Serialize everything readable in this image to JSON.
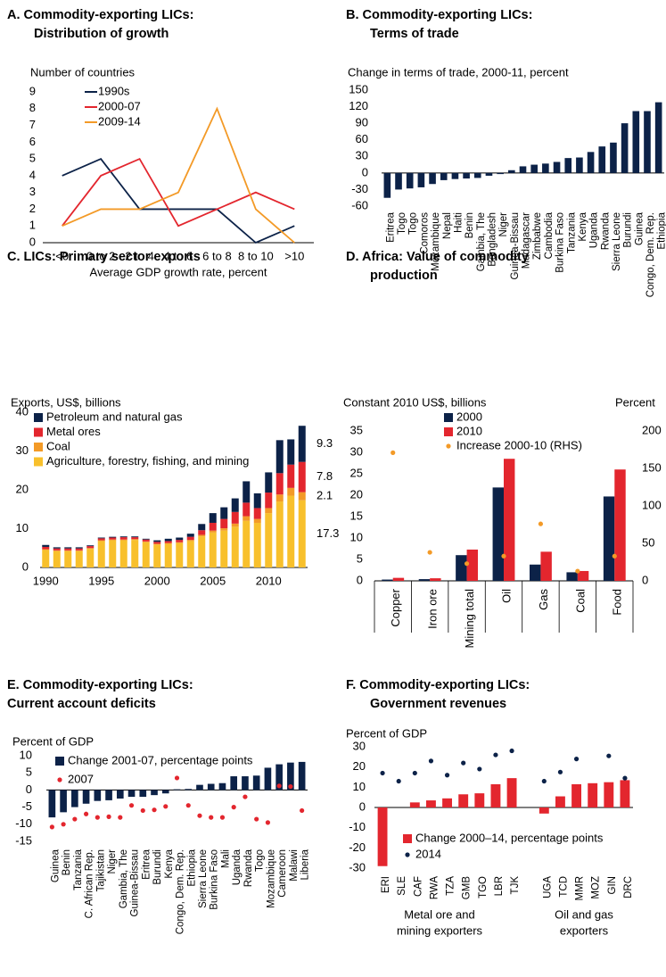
{
  "chart_data": [
    {
      "type": "line",
      "title": [
        "A. Commodity-exporting LICs:",
        "Distribution of growth"
      ],
      "ylabel": "Number of countries",
      "xlabel": "Average GDP growth rate, percent",
      "categories": [
        "<0",
        "0 to 2",
        "2 to 4",
        "4 to 6",
        "6 to 8",
        "8 to 10",
        ">10"
      ],
      "series": [
        {
          "name": "1990s",
          "color": "#0c2248",
          "values": [
            4,
            5,
            2,
            2,
            2,
            0,
            1
          ]
        },
        {
          "name": "2000-07",
          "color": "#e3262e",
          "values": [
            1,
            4,
            5,
            1,
            2,
            3,
            2
          ]
        },
        {
          "name": "2009-14",
          "color": "#f39a27",
          "values": [
            1,
            2,
            2,
            3,
            8,
            2,
            0
          ]
        }
      ],
      "ylim": [
        0,
        9
      ],
      "yticks": [
        0,
        1,
        2,
        3,
        4,
        5,
        6,
        7,
        8,
        9
      ]
    },
    {
      "type": "bar",
      "title": [
        "B. Commodity-exporting LICs:",
        "Terms of trade"
      ],
      "ylabel": "Change in terms of trade, 2000-11, percent",
      "categories": [
        "Eritrea",
        "Togo",
        "Togo",
        "Comoros",
        "Mozambique",
        "Nepal",
        "Haiti",
        "Benin",
        "Gambia, The",
        "Bangladesh",
        "Niger",
        "Guinea-Bissau",
        "Madagascar",
        "Zimbabwe",
        "Cambodia",
        "Burkina Faso",
        "Tanzania",
        "Kenya",
        "Uganda",
        "Rwanda",
        "Sierra Leone",
        "Burundi",
        "Guinea",
        "Congo, Dem. Rep.",
        "Ethiopia"
      ],
      "series": [
        {
          "color": "#0c2248",
          "values": [
            -45,
            -30,
            -28,
            -26,
            -20,
            -13,
            -11,
            -10,
            -9,
            -5,
            -2,
            5,
            12,
            15,
            17,
            20,
            27,
            28,
            38,
            48,
            55,
            90,
            112,
            112,
            128
          ]
        }
      ],
      "ylim": [
        -60,
        150
      ],
      "yticks": [
        -60,
        -30,
        0,
        30,
        60,
        90,
        120,
        150
      ]
    },
    {
      "type": "stacked_bar",
      "title": [
        "C. LICs: Primary sector exports"
      ],
      "ylabel": "Exports, US$, billions",
      "categories": [
        "1990",
        null,
        null,
        null,
        null,
        "1995",
        null,
        null,
        null,
        null,
        "2000",
        null,
        null,
        null,
        null,
        "2005",
        null,
        null,
        null,
        null,
        "2010",
        null,
        null,
        null
      ],
      "series": [
        {
          "name": "Petroleum and natural gas",
          "color": "#0c2248",
          "values": [
            0.5,
            0.3,
            0.3,
            0.3,
            0.2,
            0.2,
            0.2,
            0.2,
            0.2,
            0.2,
            0.4,
            0.6,
            0.6,
            0.8,
            1.6,
            2.5,
            3.0,
            3.5,
            5.5,
            3.8,
            5.2,
            8.5,
            6.5,
            9.3
          ]
        },
        {
          "name": "Metal ores",
          "color": "#e3262e",
          "values": [
            0.6,
            0.5,
            0.5,
            0.5,
            0.5,
            0.5,
            0.5,
            0.6,
            0.5,
            0.5,
            0.5,
            0.5,
            0.6,
            0.8,
            1.2,
            2.0,
            2.4,
            3.0,
            3.5,
            2.8,
            4.0,
            5.5,
            6.0,
            7.8
          ]
        },
        {
          "name": "Coal",
          "color": "#f39a27",
          "values": [
            0.2,
            0.2,
            0.2,
            0.2,
            0.2,
            0.2,
            0.2,
            0.2,
            0.2,
            0.2,
            0.2,
            0.2,
            0.2,
            0.3,
            0.4,
            0.5,
            0.6,
            0.8,
            1.2,
            1.0,
            1.3,
            1.8,
            2.0,
            2.1
          ]
        },
        {
          "name": "Agriculture, forestry, fishing, and mining",
          "color": "#f8c02c",
          "values": [
            4.5,
            4.2,
            4.2,
            4.2,
            4.8,
            6.8,
            7.0,
            7.0,
            7.1,
            6.5,
            5.9,
            6.1,
            6.3,
            6.8,
            8.0,
            9.0,
            9.5,
            10.5,
            12.0,
            11.5,
            14.0,
            17.0,
            18.5,
            17.3
          ]
        }
      ],
      "ylim": [
        0,
        40
      ],
      "yticks": [
        0,
        10,
        20,
        30,
        40
      ]
    },
    {
      "type": "combo",
      "title": [
        "D. Africa: Value of commodity",
        "production"
      ],
      "ylabel": "Constant 2010 US$, billions",
      "y2label": "Percent",
      "categories": [
        "Copper",
        "Iron ore",
        "Mining total",
        "Oil",
        "Gas",
        "Coal",
        "Food"
      ],
      "series": [
        {
          "name": "2000",
          "type": "bar",
          "color": "#0c2248",
          "values": [
            0.3,
            0.4,
            6.0,
            21.8,
            3.8,
            2.0,
            19.7
          ]
        },
        {
          "name": "2010",
          "type": "bar",
          "color": "#e3262e",
          "values": [
            0.7,
            0.6,
            7.3,
            28.5,
            6.8,
            2.3,
            26.0
          ]
        },
        {
          "name": "Increase 2000-10 (RHS)",
          "type": "scatter",
          "axis": "y2",
          "color": "#f39a27",
          "values": [
            171,
            38,
            23,
            33,
            76,
            13,
            33
          ]
        }
      ],
      "ylim": [
        0,
        35
      ],
      "yticks": [
        0,
        5,
        10,
        15,
        20,
        25,
        30,
        35
      ],
      "y2lim": [
        0,
        200
      ],
      "y2ticks": [
        0,
        50,
        100,
        150,
        200
      ]
    },
    {
      "type": "combo",
      "title": [
        "E. Commodity-exporting LICs:",
        "Current account deficits"
      ],
      "ylabel": "Percent of GDP",
      "categories": [
        "Guinea",
        "Benin",
        "Tanzania",
        "C. African Rep.",
        "Tajikistan",
        "Niger",
        "Gambia, The",
        "Guinea-Bissau",
        "Eritrea",
        "Burundi",
        "Kenya",
        "Congo, Dem. Rep.",
        "Ethiopia",
        "Sierra Leone",
        "Burkina Faso",
        "Mali",
        "Uganda",
        "Rwanda",
        "Togo",
        "Mozambique",
        "Cameroon",
        "Malawi",
        "Liberia"
      ],
      "series": [
        {
          "name": "Change 2001-07, percentage points",
          "type": "bar",
          "color": "#0c2248",
          "values": [
            -8,
            -6.5,
            -5,
            -4,
            -3.2,
            -3,
            -2.5,
            -2,
            -2,
            -1.5,
            -1,
            0.2,
            0.3,
            1.5,
            1.8,
            2,
            4,
            4,
            4.2,
            6.5,
            7.5,
            8,
            8.2
          ]
        },
        {
          "name": "2007",
          "type": "scatter",
          "color": "#e3262e",
          "values": [
            -10.8,
            -10,
            -8.5,
            -7,
            -8,
            -7.8,
            -8,
            -4.5,
            -6,
            -5.8,
            -4.8,
            3.5,
            -4.5,
            -7.5,
            -8,
            -8,
            -5,
            -2,
            -8.5,
            -9.5,
            1.2,
            1,
            -6
          ]
        }
      ],
      "ylim": [
        -15,
        10
      ],
      "yticks": [
        -15,
        -10,
        -5,
        0,
        5,
        10
      ]
    },
    {
      "type": "combo",
      "title": [
        "F. Commodity-exporting LICs:",
        "Government revenues"
      ],
      "ylabel": "Percent of GDP",
      "categories": [
        "ERI",
        "SLE",
        "CAF",
        "RWA",
        "TZA",
        "GMB",
        "TGO",
        "LBR",
        "TJK",
        null,
        "UGA",
        "TCD",
        "MMR",
        "MOZ",
        "GIN",
        "DRC"
      ],
      "group_labels": [
        [
          "Metal ore and",
          "mining exporters"
        ],
        [
          "Oil and gas",
          "exporters"
        ]
      ],
      "series": [
        {
          "name": "Change 2000–14, percentage points",
          "type": "bar",
          "color": "#e3262e",
          "values": [
            -29,
            0,
            2.5,
            3.5,
            4.5,
            6.5,
            7,
            11.5,
            14.5,
            null,
            -3,
            5.5,
            11.5,
            12,
            12.5,
            13.5
          ]
        },
        {
          "name": "2014",
          "type": "scatter",
          "color": "#0c2248",
          "values": [
            17,
            13,
            17,
            23,
            16,
            22,
            19,
            26,
            28,
            null,
            13,
            17.5,
            24,
            null,
            25.5,
            14.5
          ]
        }
      ],
      "ylim": [
        -30,
        30
      ],
      "yticks": [
        -30,
        -20,
        -10,
        0,
        10,
        20,
        30
      ]
    }
  ]
}
